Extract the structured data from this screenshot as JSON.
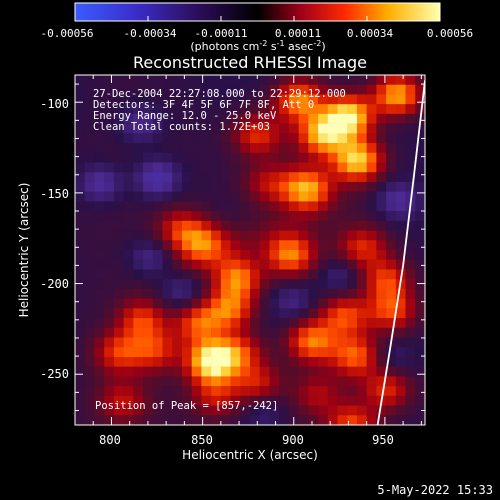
{
  "chart_data": {
    "type": "heatmap",
    "title": "Reconstructed RHESSI Image",
    "xlabel": "Heliocentric X (arcsec)",
    "ylabel": "Heliocentric Y (arcsec)",
    "xlim": [
      780,
      972
    ],
    "ylim": [
      -278,
      -85
    ],
    "x_ticks": [
      800,
      850,
      900,
      950
    ],
    "y_ticks": [
      -100,
      -150,
      -200,
      -250
    ],
    "colorbar": {
      "min": -0.00056,
      "max": 0.00056,
      "ticks": [
        "-0.00056",
        "-0.00034",
        "-0.00011",
        "0.00011",
        "0.00034",
        "0.00056"
      ],
      "label_main": "(photons cm",
      "label_sup1": "-2",
      "label_mid1": " s",
      "label_sup2": "-1",
      "label_mid2": " asec",
      "label_sup3": "-2",
      "label_end": ")"
    },
    "info_lines": [
      "27-Dec-2004 22:27:08.000 to 22:29:12.000",
      "Detectors: 3F 4F 5F 6F 7F 8F, Att 0",
      "Energy Range: 12.0 - 25.0 keV",
      "Clean     Total counts: 1.72E+03"
    ],
    "peak_label": "Position of Peak = [857,-242]",
    "peak_position": [
      857,
      -242
    ],
    "hotspots": [
      {
        "x": 855,
        "y": -243,
        "intensity": 1.0
      },
      {
        "x": 848,
        "y": -222,
        "intensity": 0.58
      },
      {
        "x": 930,
        "y": -108,
        "intensity": 0.92
      },
      {
        "x": 935,
        "y": -132,
        "intensity": 0.84
      },
      {
        "x": 916,
        "y": -118,
        "intensity": 0.73
      },
      {
        "x": 907,
        "y": -148,
        "intensity": 0.72
      },
      {
        "x": 898,
        "y": -184,
        "intensity": 0.66
      },
      {
        "x": 869,
        "y": -197,
        "intensity": 0.68
      },
      {
        "x": 865,
        "y": -214,
        "intensity": 0.62
      },
      {
        "x": 870,
        "y": -238,
        "intensity": 0.48
      },
      {
        "x": 880,
        "y": -255,
        "intensity": 0.41
      },
      {
        "x": 910,
        "y": -232,
        "intensity": 0.64
      },
      {
        "x": 934,
        "y": -240,
        "intensity": 0.59
      },
      {
        "x": 928,
        "y": -218,
        "intensity": 0.53
      },
      {
        "x": 954,
        "y": -215,
        "intensity": 0.54
      },
      {
        "x": 951,
        "y": -198,
        "intensity": 0.51
      },
      {
        "x": 850,
        "y": -178,
        "intensity": 0.55
      },
      {
        "x": 838,
        "y": -170,
        "intensity": 0.43
      },
      {
        "x": 817,
        "y": -220,
        "intensity": 0.49
      },
      {
        "x": 824,
        "y": -237,
        "intensity": 0.44
      },
      {
        "x": 806,
        "y": -265,
        "intensity": 0.34
      },
      {
        "x": 932,
        "y": -278,
        "intensity": 0.52
      },
      {
        "x": 951,
        "y": -258,
        "intensity": 0.48
      },
      {
        "x": 957,
        "y": -96,
        "intensity": 0.78
      },
      {
        "x": 903,
        "y": -99,
        "intensity": 0.66
      },
      {
        "x": 880,
        "y": -118,
        "intensity": 0.47
      },
      {
        "x": 938,
        "y": -180,
        "intensity": 0.45
      },
      {
        "x": 886,
        "y": -145,
        "intensity": 0.32
      },
      {
        "x": 804,
        "y": -238,
        "intensity": 0.46
      },
      {
        "x": 857,
        "y": -262,
        "intensity": 0.39
      },
      {
        "x": 913,
        "y": -261,
        "intensity": 0.31
      }
    ],
    "coldspots": [
      {
        "x": 825,
        "y": -142,
        "intensity": -0.34
      },
      {
        "x": 794,
        "y": -145,
        "intensity": -0.28
      },
      {
        "x": 822,
        "y": -186,
        "intensity": -0.22
      },
      {
        "x": 838,
        "y": -205,
        "intensity": -0.19
      },
      {
        "x": 816,
        "y": -112,
        "intensity": -0.24
      },
      {
        "x": 900,
        "y": -210,
        "intensity": -0.18
      },
      {
        "x": 957,
        "y": -154,
        "intensity": -0.24
      },
      {
        "x": 953,
        "y": -243,
        "intensity": -0.16
      },
      {
        "x": 926,
        "y": -196,
        "intensity": -0.2
      },
      {
        "x": 884,
        "y": -270,
        "intensity": -0.17
      }
    ],
    "limb_curve": [
      [
        972,
        -88
      ],
      [
        966,
        -140
      ],
      [
        960,
        -190
      ],
      [
        953,
        -235
      ],
      [
        946,
        -278
      ]
    ]
  },
  "footer": {
    "timestamp": "5-May-2022 15:33"
  }
}
